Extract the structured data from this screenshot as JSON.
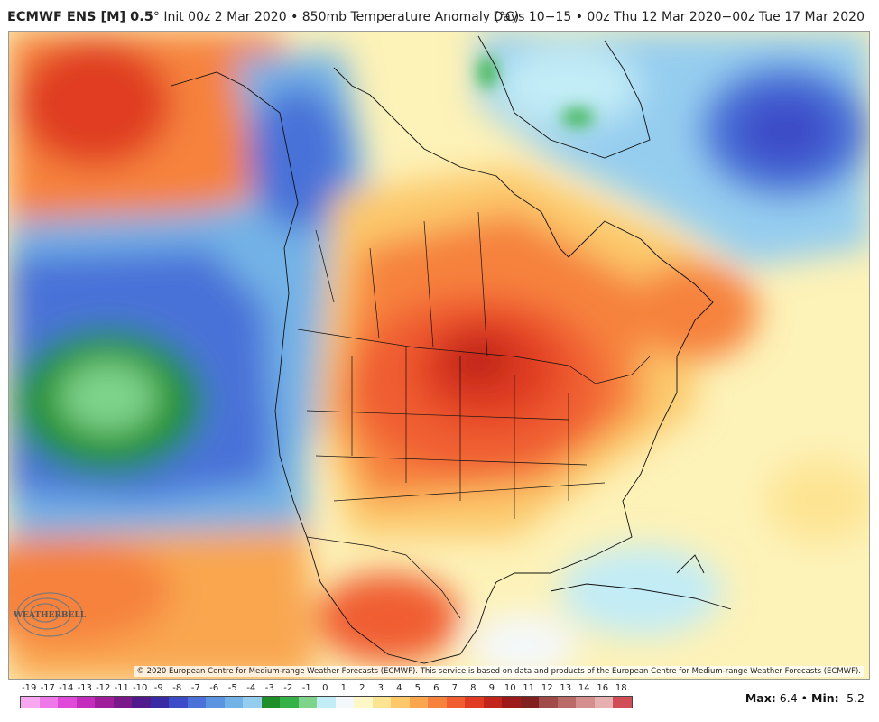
{
  "header": {
    "model": "ECMWF ENS [M] 0.5",
    "subtitle": "° Init 00z 2 Mar 2020 • 850mb Temperature Anomaly (°C)",
    "valid": "Days 10−15 • 00z Thu 12 Mar 2020−00z Tue 17 Mar 2020"
  },
  "map": {
    "copyright": "© 2020 European Centre for Medium-range Weather Forecasts (ECMWF). This service is based on data and products of the European Centre for Medium-range Weather Forecasts (ECMWF).",
    "logo_text": "WEATHERBELL",
    "anomaly_features": [
      {
        "region": "central US / Great Lakes",
        "sign": "warm",
        "peak_c": 6.4
      },
      {
        "region": "Gulf of Alaska",
        "sign": "warm"
      },
      {
        "region": "NE Pacific",
        "sign": "cold",
        "min_c": -5.2
      },
      {
        "region": "Greenland / Labrador Sea",
        "sign": "cold"
      },
      {
        "region": "Western Canada / Rockies",
        "sign": "cold"
      }
    ]
  },
  "colorbar": {
    "labels": [
      "-19",
      "-17",
      "-14",
      "-13",
      "-12",
      "-11",
      "-10",
      "-9",
      "-8",
      "-7",
      "-6",
      "-5",
      "-4",
      "-3",
      "-2",
      "-1",
      "0",
      "1",
      "2",
      "3",
      "4",
      "5",
      "6",
      "7",
      "8",
      "9",
      "10",
      "11",
      "12",
      "13",
      "14",
      "16",
      "18"
    ],
    "colors": [
      "#f7a6f0",
      "#ee78e8",
      "#e04ad8",
      "#c42cbd",
      "#a01e9c",
      "#7a1a8a",
      "#4e1a8c",
      "#3b2aa6",
      "#3c4cc8",
      "#4a72d8",
      "#5b94e0",
      "#73b2e6",
      "#95cdef",
      "#1f8f2a",
      "#34b247",
      "#7fd48b",
      "#c2ecf6",
      "#f4f8fb",
      "#fdf6c6",
      "#fde493",
      "#fcc86a",
      "#f9a64f",
      "#f6823e",
      "#f05d30",
      "#e03c24",
      "#c2261b",
      "#9e1a1a",
      "#82201f",
      "#a14a4a",
      "#bb6a6a",
      "#d48e8e",
      "#e6b0b0",
      "#d04c56"
    ]
  },
  "stats": {
    "max_label": "Max:",
    "max_value": "6.4",
    "sep": "•",
    "min_label": "Min:",
    "min_value": "-5.2"
  }
}
